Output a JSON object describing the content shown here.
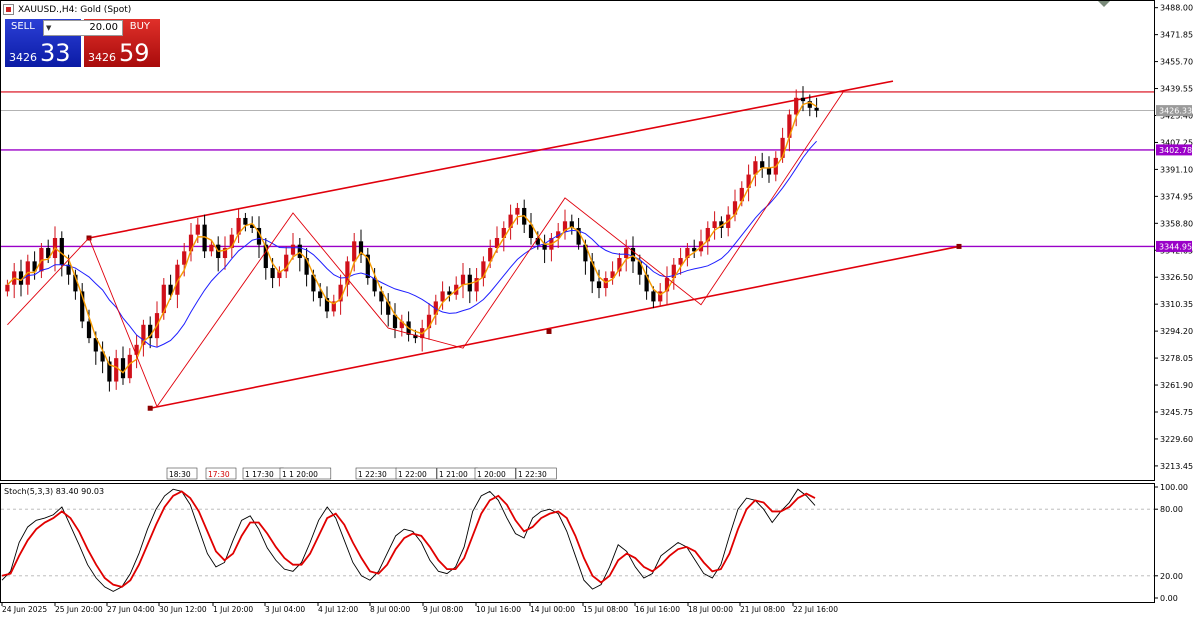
{
  "window": {
    "symbol_title": "XAUUSD.,H4: Gold (Spot)"
  },
  "trade_panel": {
    "sell_label": "SELL",
    "buy_label": "BUY",
    "lot": "20.00",
    "sell_price_prefix": "3426",
    "sell_price_big": "33",
    "buy_price_prefix": "3426",
    "buy_price_big": "59",
    "sell_color": "#1a2bc4",
    "buy_color": "#c81818"
  },
  "indicator": {
    "label": "Stoch(5,3,3) 83.40 90.03"
  },
  "colors": {
    "bull": "#d0101a",
    "bear": "#000000",
    "channel": "#e0000c",
    "horizontal_purple": "#9a00c8",
    "ma_blue": "#1f1fff",
    "ma_orange": "#f59a00",
    "stoch_main": "#000000",
    "stoch_signal": "#e00000"
  },
  "chart_data": [
    {
      "type": "candlestick",
      "symbol": "XAUUSD.",
      "timeframe": "H4",
      "ylim": [
        3205,
        3492
      ],
      "y_ticks": [
        "3488.00",
        "3471.85",
        "3455.70",
        "3439.55",
        "3423.40",
        "3407.25",
        "3391.10",
        "3374.95",
        "3358.80",
        "3342.65",
        "3326.50",
        "3310.35",
        "3294.20",
        "3278.05",
        "3261.90",
        "3245.75",
        "3229.60",
        "3213.45"
      ],
      "x_ticks": [
        "24 Jun 2025",
        "25 Jun 20:00",
        "27 Jun 04:00",
        "30 Jun 12:00",
        "1 Jul 20:00",
        "3 Jul 04:00",
        "4 Jul 12:00",
        "8 Jul 00:00",
        "9 Jul 08:00",
        "10 Jul 16:00",
        "14 Jul 00:00",
        "15 Jul 08:00",
        "16 Jul 16:00",
        "18 Jul 00:00",
        "21 Jul 08:00",
        "22 Jul 16:00"
      ],
      "price_labels": [
        {
          "text": "3426.33",
          "value": 3426.33,
          "kind": "bid"
        },
        {
          "text": "3402.78",
          "value": 3402.78,
          "kind": "level"
        },
        {
          "text": "3344.95",
          "value": 3344.95,
          "kind": "level"
        }
      ],
      "resistance_line": 3437.5,
      "session_markers": [
        "18:30",
        "17:30",
        "1 17:30",
        "1 1 20:00",
        "1 22:30",
        "1 22:00",
        "1 21:00",
        "1 20:00",
        "1 22:30"
      ],
      "closes": [
        3322,
        3330,
        3322,
        3336,
        3330,
        3344,
        3338,
        3350,
        3334,
        3328,
        3318,
        3300,
        3290,
        3282,
        3276,
        3264,
        3278,
        3266,
        3280,
        3286,
        3298,
        3290,
        3305,
        3322,
        3316,
        3334,
        3342,
        3352,
        3358,
        3342,
        3346,
        3338,
        3344,
        3352,
        3362,
        3358,
        3356,
        3346,
        3332,
        3326,
        3330,
        3340,
        3346,
        3338,
        3328,
        3318,
        3314,
        3306,
        3312,
        3322,
        3336,
        3348,
        3340,
        3326,
        3318,
        3312,
        3304,
        3296,
        3300,
        3292,
        3290,
        3296,
        3304,
        3312,
        3318,
        3316,
        3322,
        3328,
        3318,
        3326,
        3336,
        3344,
        3350,
        3356,
        3364,
        3368,
        3358,
        3350,
        3346,
        3343,
        3350,
        3354,
        3360,
        3356,
        3346,
        3336,
        3324,
        3320,
        3326,
        3330,
        3338,
        3344,
        3336,
        3328,
        3318,
        3312,
        3318,
        3326,
        3334,
        3338,
        3344,
        3342,
        3348,
        3356,
        3360,
        3356,
        3364,
        3372,
        3380,
        3388,
        3396,
        3392,
        3388,
        3398,
        3410,
        3424,
        3434,
        3432,
        3428,
        3426.33
      ],
      "channel_upper": {
        "from": {
          "i": 12,
          "price": 3350
        },
        "to": {
          "i": 147,
          "price": 3444
        }
      },
      "channel_lower": {
        "from": {
          "i": 21,
          "price": 3248
        },
        "to": {
          "i": 152,
          "price": 3344.95
        }
      },
      "zigzag_points": [
        {
          "i": 0,
          "price": 3298
        },
        {
          "i": 12,
          "price": 3350
        },
        {
          "i": 22,
          "price": 3249
        },
        {
          "i": 42,
          "price": 3365
        },
        {
          "i": 56,
          "price": 3296
        },
        {
          "i": 67,
          "price": 3284
        },
        {
          "i": 82,
          "price": 3374
        },
        {
          "i": 102,
          "price": 3310
        },
        {
          "i": 123,
          "price": 3438
        }
      ]
    },
    {
      "type": "line",
      "title": "Stoch(5,3,3) 83.40 90.03",
      "ylim": [
        0,
        100
      ],
      "y_ticks": [
        "100.00",
        "80.00",
        "20.00",
        "0.00"
      ],
      "levels": [
        80,
        20
      ],
      "series": [
        {
          "name": "main",
          "values": [
            16,
            24,
            50,
            64,
            70,
            72,
            75,
            82,
            65,
            48,
            30,
            18,
            10,
            6,
            10,
            22,
            40,
            62,
            80,
            92,
            98,
            96,
            84,
            62,
            40,
            28,
            32,
            52,
            70,
            74,
            62,
            45,
            34,
            26,
            24,
            32,
            50,
            70,
            82,
            72,
            52,
            32,
            20,
            16,
            24,
            40,
            56,
            62,
            60,
            50,
            34,
            24,
            22,
            28,
            46,
            78,
            92,
            96,
            88,
            72,
            58,
            54,
            72,
            78,
            80,
            76,
            60,
            38,
            16,
            8,
            12,
            28,
            48,
            42,
            28,
            18,
            22,
            38,
            44,
            50,
            46,
            34,
            22,
            18,
            30,
            56,
            80,
            90,
            88,
            80,
            68,
            78,
            86,
            98,
            92,
            83.4
          ]
        },
        {
          "name": "signal",
          "values": [
            20,
            22,
            38,
            52,
            62,
            68,
            72,
            78,
            72,
            60,
            44,
            30,
            18,
            12,
            10,
            16,
            30,
            48,
            66,
            82,
            92,
            96,
            90,
            78,
            60,
            42,
            34,
            40,
            56,
            68,
            68,
            58,
            46,
            36,
            30,
            30,
            40,
            56,
            72,
            76,
            66,
            50,
            36,
            24,
            22,
            30,
            44,
            54,
            58,
            56,
            46,
            34,
            26,
            26,
            36,
            56,
            76,
            88,
            92,
            84,
            70,
            60,
            64,
            72,
            76,
            78,
            72,
            56,
            36,
            20,
            14,
            20,
            34,
            40,
            36,
            28,
            24,
            30,
            38,
            44,
            46,
            42,
            32,
            24,
            26,
            40,
            62,
            80,
            88,
            86,
            78,
            78,
            82,
            90,
            94,
            90.03
          ]
        }
      ]
    }
  ]
}
